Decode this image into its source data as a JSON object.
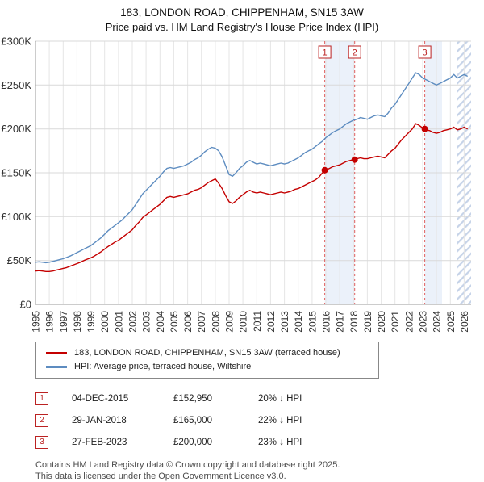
{
  "header": {
    "title": "183, LONDON ROAD, CHIPPENHAM, SN15 3AW",
    "subtitle": "Price paid vs. HM Land Registry's House Price Index (HPI)"
  },
  "chart_data": {
    "type": "line",
    "title": "Price paid vs. HPI",
    "xlim": [
      1995,
      2026.5
    ],
    "ylim": [
      0,
      300
    ],
    "y_unit": "GBP thousands",
    "yticks": [
      {
        "v": 0,
        "label": "£0"
      },
      {
        "v": 50,
        "label": "£50K"
      },
      {
        "v": 100,
        "label": "£100K"
      },
      {
        "v": 150,
        "label": "£150K"
      },
      {
        "v": 200,
        "label": "£200K"
      },
      {
        "v": 250,
        "label": "£250K"
      },
      {
        "v": 300,
        "label": "£300K"
      }
    ],
    "xticks": [
      1995,
      1996,
      1997,
      1998,
      1999,
      2000,
      2001,
      2002,
      2003,
      2004,
      2005,
      2006,
      2007,
      2008,
      2009,
      2010,
      2011,
      2012,
      2013,
      2014,
      2015,
      2016,
      2017,
      2018,
      2019,
      2020,
      2021,
      2022,
      2023,
      2024,
      2025,
      2026
    ],
    "series": [
      {
        "name": "price-paid",
        "label": "183, LONDON ROAD, CHIPPENHAM, SN15 3AW (terraced house)",
        "color": "#c40000",
        "x_start": 1995,
        "x_step": 0.25,
        "values": [
          38,
          38.5,
          38,
          37.5,
          37.5,
          38,
          39,
          40,
          41,
          42,
          43.5,
          45,
          46.5,
          48,
          50,
          51.5,
          53,
          55,
          57.5,
          60,
          63,
          66,
          68.5,
          71,
          73,
          76,
          79,
          82,
          85,
          90,
          94,
          99,
          102,
          105,
          108,
          111,
          114,
          118,
          122,
          123,
          122,
          123,
          124,
          125,
          126,
          128,
          130,
          131,
          133,
          136,
          139,
          141,
          143,
          138,
          132,
          124,
          117,
          115,
          118,
          122,
          125,
          128,
          130,
          128,
          127,
          128,
          127,
          126,
          125,
          126,
          127,
          128,
          127,
          128,
          129,
          131,
          132,
          134,
          136,
          138,
          140,
          142,
          145,
          150,
          153,
          155,
          157,
          158,
          159,
          161,
          163,
          164,
          165,
          166,
          167,
          166,
          166,
          167,
          168,
          169,
          168,
          167,
          171,
          175,
          178,
          183,
          188,
          192,
          196,
          200,
          206,
          204,
          201,
          199,
          198,
          196,
          195,
          196,
          198,
          199,
          200,
          202,
          199,
          200,
          202,
          200
        ]
      },
      {
        "name": "hpi",
        "label": "HPI: Average price, terraced house, Wiltshire",
        "color": "#5d8cc0",
        "x_start": 1995,
        "x_step": 0.25,
        "values": [
          48,
          48.5,
          48,
          47.5,
          48,
          49,
          50,
          51,
          52,
          53.5,
          55,
          57,
          59,
          61,
          63,
          65,
          67,
          70,
          73,
          76,
          80,
          84,
          87,
          90,
          93,
          96,
          100,
          104,
          108,
          114,
          120,
          126,
          130,
          134,
          138,
          142,
          146,
          151,
          155,
          156,
          155,
          156,
          157,
          158,
          160,
          162,
          165,
          167,
          170,
          174,
          177,
          179,
          178,
          175,
          168,
          158,
          148,
          146,
          150,
          155,
          158,
          162,
          164,
          162,
          160,
          161,
          160,
          159,
          158,
          159,
          160,
          161,
          160,
          161,
          163,
          165,
          167,
          170,
          173,
          175,
          177,
          180,
          183,
          186,
          190,
          193,
          196,
          198,
          200,
          203,
          206,
          208,
          210,
          211,
          213,
          212,
          211,
          213,
          215,
          216,
          215,
          214,
          218,
          224,
          228,
          234,
          240,
          246,
          252,
          258,
          264,
          262,
          258,
          256,
          254,
          252,
          250,
          252,
          254,
          256,
          258,
          262,
          258,
          260,
          262,
          260
        ]
      }
    ],
    "markers": [
      {
        "label": "1",
        "x": 2015.92,
        "y": 152.95
      },
      {
        "label": "2",
        "x": 2018.08,
        "y": 165
      },
      {
        "label": "3",
        "x": 2023.15,
        "y": 200
      }
    ],
    "shaded_bands": [
      [
        2015.92,
        2018.08
      ],
      [
        2023.15,
        2024.4
      ]
    ],
    "hatch_region": [
      2025.5,
      2026.5
    ],
    "colors": {
      "grid": "#d9d9d9",
      "band": "#dbe6f5",
      "marker_line": "#e06060",
      "axis_text": "#333333",
      "flag": "#bb2222"
    },
    "legend_position": "bottom"
  },
  "legend": [
    {
      "label": "183, LONDON ROAD, CHIPPENHAM, SN15 3AW (terraced house)",
      "color": "#c40000"
    },
    {
      "label": "HPI: Average price, terraced house, Wiltshire",
      "color": "#5d8cc0"
    }
  ],
  "transactions": [
    {
      "num": "1",
      "date": "04-DEC-2015",
      "price": "£152,950",
      "hpi_diff": "20% ↓ HPI"
    },
    {
      "num": "2",
      "date": "29-JAN-2018",
      "price": "£165,000",
      "hpi_diff": "22% ↓ HPI"
    },
    {
      "num": "3",
      "date": "27-FEB-2023",
      "price": "£200,000",
      "hpi_diff": "23% ↓ HPI"
    }
  ],
  "footer": {
    "line1": "Contains HM Land Registry data © Crown copyright and database right 2025.",
    "line2": "This data is licensed under the Open Government Licence v3.0."
  }
}
